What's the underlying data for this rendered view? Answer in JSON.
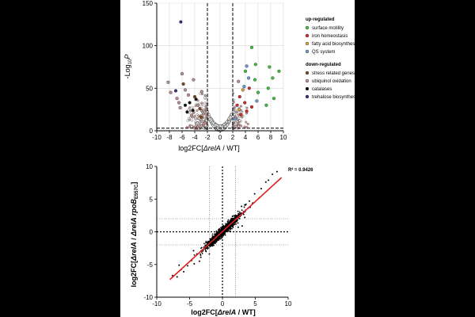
{
  "chart_data": [
    {
      "type": "scatter",
      "title": "",
      "xlabel_parts": [
        "log2FC[",
        "ΔrelA",
        " / WT]"
      ],
      "ylabel": "-Log10P",
      "xlim": [
        -10,
        10
      ],
      "ylim": [
        0,
        150
      ],
      "xticks": [
        "-10",
        "-8",
        "-6",
        "-4",
        "-2",
        "0",
        "2",
        "4",
        "6",
        "8",
        "10"
      ],
      "yticks": [
        "0",
        "50",
        "100",
        "150"
      ],
      "fc_cutoffs": [
        -2,
        2
      ],
      "p_cutoff": 3,
      "grid": true,
      "legend_position": "right",
      "legend": {
        "up_title": "up-regulated",
        "up_items": [
          {
            "label": "surface motility",
            "color": "#3cc23c"
          },
          {
            "label": "iron homeostasis",
            "color": "#d42a2a"
          },
          {
            "label": "fatty acid biosynthesis",
            "color": "#e0a030"
          },
          {
            "label": "QS system",
            "color": "#6a9ad8"
          }
        ],
        "down_title": "down-regulated",
        "down_items": [
          {
            "label": "stress related genes",
            "color": "#7a4a1a"
          },
          {
            "label": "ubiquinol oxidation",
            "color": "#b89090"
          },
          {
            "label": "catalases",
            "color": "#111111"
          },
          {
            "label": "trehalose biosynthesis",
            "color": "#3a2a7a"
          }
        ]
      },
      "highlighted_points": [
        {
          "x": -6.2,
          "y": 128,
          "group": "trehalose biosynthesis"
        },
        {
          "x": -8.2,
          "y": 57,
          "group": "ubiquinol oxidation"
        },
        {
          "x": -7.8,
          "y": 45,
          "group": "ubiquinol oxidation"
        },
        {
          "x": -7.0,
          "y": 47,
          "group": "trehalose biosynthesis"
        },
        {
          "x": -6.8,
          "y": 38,
          "group": "ubiquinol oxidation"
        },
        {
          "x": -6.0,
          "y": 67,
          "group": "ubiquinol oxidation"
        },
        {
          "x": -5.8,
          "y": 55,
          "group": "stress related genes"
        },
        {
          "x": -5.5,
          "y": 48,
          "group": "ubiquinol oxidation"
        },
        {
          "x": -5.0,
          "y": 42,
          "group": "ubiquinol oxidation"
        },
        {
          "x": -4.8,
          "y": 33,
          "group": "catalases"
        },
        {
          "x": -4.2,
          "y": 60,
          "group": "ubiquinol oxidation"
        },
        {
          "x": -4.0,
          "y": 40,
          "group": "stress related genes"
        },
        {
          "x": -3.8,
          "y": 37,
          "group": "catalases"
        },
        {
          "x": -3.5,
          "y": 30,
          "group": "ubiquinol oxidation"
        },
        {
          "x": -3.2,
          "y": 26,
          "group": "stress related genes"
        },
        {
          "x": -5.2,
          "y": 22,
          "group": "catalases"
        },
        {
          "x": -6.3,
          "y": 27,
          "group": "ubiquinol oxidation"
        },
        {
          "x": -4.5,
          "y": 18,
          "group": "ubiquinol oxidation"
        },
        {
          "x": -3.0,
          "y": 16,
          "group": "stress related genes"
        },
        {
          "x": -2.6,
          "y": 20,
          "group": "ubiquinol oxidation"
        },
        {
          "x": -2.9,
          "y": 46,
          "group": "ubiquinol oxidation"
        },
        {
          "x": -5.5,
          "y": 30,
          "group": "catalases"
        },
        {
          "x": -6.5,
          "y": 33,
          "group": "ubiquinol oxidation"
        },
        {
          "x": -4.3,
          "y": 24,
          "group": "catalases"
        },
        {
          "x": 5.0,
          "y": 98,
          "group": "surface motility"
        },
        {
          "x": 7.8,
          "y": 75,
          "group": "surface motility"
        },
        {
          "x": 8.3,
          "y": 62,
          "group": "surface motility"
        },
        {
          "x": 9.3,
          "y": 70,
          "group": "surface motility"
        },
        {
          "x": 8.5,
          "y": 38,
          "group": "surface motility"
        },
        {
          "x": 7.3,
          "y": 30,
          "group": "surface motility"
        },
        {
          "x": 7.6,
          "y": 50,
          "group": "surface motility"
        },
        {
          "x": 4.0,
          "y": 70,
          "group": "surface motility"
        },
        {
          "x": 5.5,
          "y": 60,
          "group": "surface motility"
        },
        {
          "x": 6.0,
          "y": 45,
          "group": "surface motility"
        },
        {
          "x": 5.6,
          "y": 78,
          "group": "surface motility"
        },
        {
          "x": 4.2,
          "y": 76,
          "group": "QS system"
        },
        {
          "x": 4.5,
          "y": 62,
          "group": "QS system"
        },
        {
          "x": 3.8,
          "y": 52,
          "group": "QS system"
        },
        {
          "x": 3.6,
          "y": 48,
          "group": "fatty acid biosynthesis"
        },
        {
          "x": 4.6,
          "y": 50,
          "group": "iron homeostasis"
        },
        {
          "x": 3.1,
          "y": 40,
          "group": "iron homeostasis"
        },
        {
          "x": 3.9,
          "y": 33,
          "group": "iron homeostasis"
        },
        {
          "x": 2.7,
          "y": 30,
          "group": "iron homeostasis"
        },
        {
          "x": 4.2,
          "y": 23,
          "group": "iron homeostasis"
        },
        {
          "x": 3.3,
          "y": 19,
          "group": "iron homeostasis"
        },
        {
          "x": 5.0,
          "y": 28,
          "group": "iron homeostasis"
        },
        {
          "x": 2.4,
          "y": 14,
          "group": "QS system"
        },
        {
          "x": 3.0,
          "y": 25,
          "group": "fatty acid biosynthesis"
        },
        {
          "x": 5.8,
          "y": 35,
          "group": "QS system"
        },
        {
          "x": 2.9,
          "y": 58,
          "group": "ubiquinol oxidation"
        }
      ]
    },
    {
      "type": "scatter",
      "title": "",
      "xlabel_parts": [
        "log2FC[",
        "ΔrelA",
        " / WT]"
      ],
      "ylabel_parts": [
        "log2FC[",
        "ΔrelA",
        " / ",
        "ΔrelA rpoB",
        "E557C",
        "]"
      ],
      "xlim": [
        -10,
        10
      ],
      "ylim": [
        -10,
        10
      ],
      "xticks": [
        "-10",
        "-5",
        "0",
        "5",
        "10"
      ],
      "yticks": [
        "-10",
        "-5",
        "0",
        "5",
        "10"
      ],
      "reference_lines": [
        -2,
        2
      ],
      "annotation": "R² = 0.9426",
      "regression": {
        "color": "#e02020",
        "x": [
          -8,
          9
        ],
        "y": [
          -7.3,
          8.3
        ]
      },
      "points_note": "points cluster along the regression line, denser near the origin",
      "outliers": [
        {
          "x": 8.3,
          "y": 9.2
        },
        {
          "x": 7.6,
          "y": 8.8
        },
        {
          "x": 7.0,
          "y": 7.9
        },
        {
          "x": 6.6,
          "y": 7.6
        },
        {
          "x": 5.9,
          "y": 6.6
        },
        {
          "x": 5.6,
          "y": 5.2
        },
        {
          "x": 4.9,
          "y": 5.8
        },
        {
          "x": 4.6,
          "y": 4.4
        },
        {
          "x": 4.1,
          "y": 4.7
        },
        {
          "x": 3.9,
          "y": 3.6
        },
        {
          "x": 3.5,
          "y": 4.1
        },
        {
          "x": 2.9,
          "y": 3.9
        },
        {
          "x": 3.4,
          "y": 2.2
        },
        {
          "x": 2.4,
          "y": 0.7
        },
        {
          "x": 3.0,
          "y": 0.9
        },
        {
          "x": -7.6,
          "y": -6.7
        },
        {
          "x": -6.9,
          "y": -6.9
        },
        {
          "x": -6.3,
          "y": -5.8
        },
        {
          "x": -5.9,
          "y": -6.1
        },
        {
          "x": -5.3,
          "y": -5.2
        },
        {
          "x": -4.7,
          "y": -4.4
        },
        {
          "x": -4.3,
          "y": -4.9
        },
        {
          "x": -3.9,
          "y": -3.4
        },
        {
          "x": -3.3,
          "y": -3.9
        },
        {
          "x": -2.8,
          "y": -2.4
        },
        {
          "x": -2.5,
          "y": -3.0
        },
        {
          "x": -4.4,
          "y": -2.9
        },
        {
          "x": -2.0,
          "y": -3.4
        },
        {
          "x": -6.6,
          "y": -5.1
        },
        {
          "x": -3.5,
          "y": -4.5
        }
      ]
    }
  ]
}
